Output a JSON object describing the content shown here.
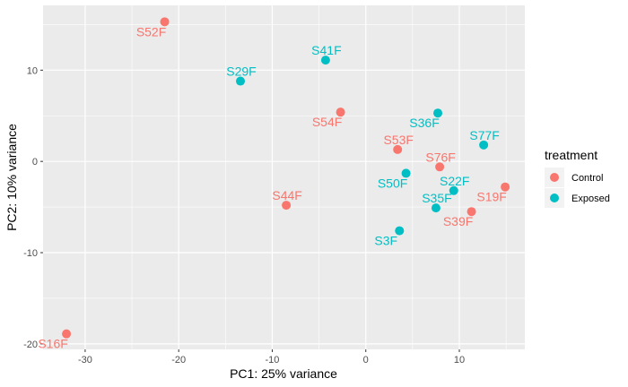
{
  "chart_data": {
    "type": "scatter",
    "xlabel": "PC1: 25% variance",
    "ylabel": "PC2: 10% variance",
    "xlim": [
      -34.5,
      17
    ],
    "ylim": [
      -20.6,
      17.1
    ],
    "xticks": [
      -30,
      -20,
      -10,
      0,
      10
    ],
    "yticks": [
      -20,
      -10,
      0,
      10
    ],
    "grid": true,
    "legend": {
      "title": "treatment",
      "placement": "right",
      "entries": [
        {
          "label": "Control",
          "color": "#F8766D"
        },
        {
          "label": "Exposed",
          "color": "#00BFC4"
        }
      ]
    },
    "points": [
      {
        "label": "S52F",
        "x": -21.5,
        "y": 15.3,
        "group": "Control"
      },
      {
        "label": "S41F",
        "x": -4.3,
        "y": 11.1,
        "group": "Exposed"
      },
      {
        "label": "S29F",
        "x": -13.4,
        "y": 8.8,
        "group": "Exposed"
      },
      {
        "label": "S54F",
        "x": -2.7,
        "y": 5.4,
        "group": "Control"
      },
      {
        "label": "S36F",
        "x": 7.7,
        "y": 5.3,
        "group": "Exposed"
      },
      {
        "label": "S77F",
        "x": 12.6,
        "y": 1.8,
        "group": "Exposed"
      },
      {
        "label": "S53F",
        "x": 3.4,
        "y": 1.3,
        "group": "Control"
      },
      {
        "label": "S76F",
        "x": 7.9,
        "y": -0.6,
        "group": "Control"
      },
      {
        "label": "S50F",
        "x": 4.3,
        "y": -1.3,
        "group": "Exposed"
      },
      {
        "label": "S22F",
        "x": 9.4,
        "y": -3.2,
        "group": "Exposed"
      },
      {
        "label": "S19F",
        "x": 14.9,
        "y": -2.8,
        "group": "Control"
      },
      {
        "label": "S44F",
        "x": -8.5,
        "y": -4.8,
        "group": "Control"
      },
      {
        "label": "S35F",
        "x": 7.5,
        "y": -5.1,
        "group": "Exposed"
      },
      {
        "label": "S39F",
        "x": 11.3,
        "y": -5.5,
        "group": "Control"
      },
      {
        "label": "S3F",
        "x": 3.6,
        "y": -7.6,
        "group": "Exposed"
      },
      {
        "label": "S16F",
        "x": -32.0,
        "y": -18.9,
        "group": "Control"
      }
    ]
  }
}
